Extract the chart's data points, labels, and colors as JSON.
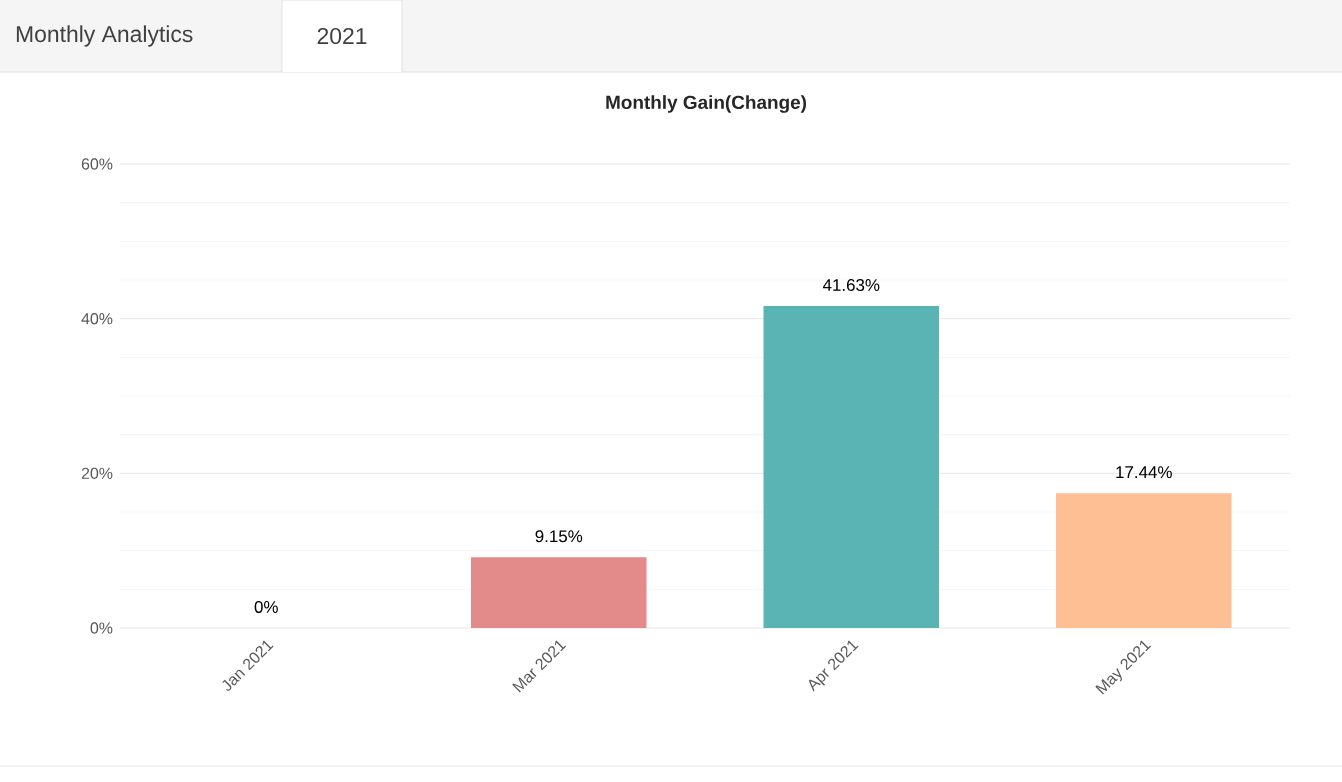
{
  "chart_data": {
    "type": "bar",
    "title": "Monthly Gain(Change)",
    "annotations": [
      "Monthly Analytics",
      "2021"
    ],
    "categories": [
      "Jan 2021",
      "Mar 2021",
      "Apr 2021",
      "May 2021"
    ],
    "values": [
      0,
      9.15,
      41.63,
      17.44
    ],
    "colors": [
      "#7cb5ec",
      "#e38a8a",
      "#5ab4b4",
      "#ffbf94"
    ],
    "value_labels": [
      "0%",
      "9.15%",
      "41.63%",
      "17.44%"
    ],
    "ylim": [
      0,
      60
    ],
    "yticks": [
      {
        "value": 0,
        "label": "0%"
      },
      {
        "value": 20,
        "label": "20%"
      },
      {
        "value": 40,
        "label": "40%"
      },
      {
        "value": 60,
        "label": "60%"
      }
    ],
    "grid": true
  }
}
